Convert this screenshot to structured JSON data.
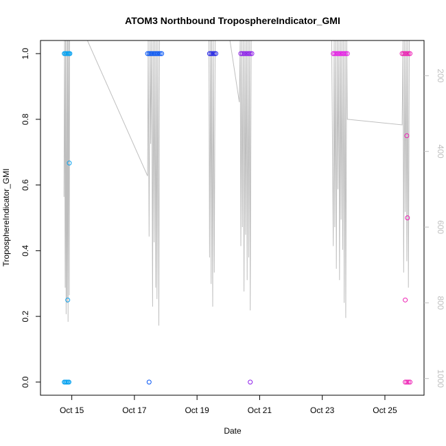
{
  "chart_data": {
    "type": "scatter",
    "title": "ATOM3 Northbound TroposphereIndicator_GMI",
    "xlabel": "Date",
    "ylabel": "TroposphereIndicator_GMI",
    "x_unit": "day of October",
    "xlim": [
      14.0,
      26.25
    ],
    "ylim": [
      -0.04,
      1.04
    ],
    "x_ticks": [
      15,
      17,
      19,
      21,
      23,
      25
    ],
    "x_tick_labels": [
      "Oct 15",
      "Oct 17",
      "Oct 19",
      "Oct 21",
      "Oct 23",
      "Oct 25"
    ],
    "y_ticks": [
      0.0,
      0.2,
      0.4,
      0.6,
      0.8,
      1.0
    ],
    "y_tick_labels": [
      "0.0",
      "0.2",
      "0.4",
      "0.6",
      "0.8",
      "1.0"
    ],
    "y2_ticks": [
      200,
      400,
      600,
      800,
      1000
    ],
    "y2_tick_labels": [
      "200",
      "400",
      "600",
      "800",
      "1000"
    ],
    "y2_lim": [
      1044,
      107
    ],
    "grid": false,
    "colors": {
      "series_1": "#0aa3f0",
      "series_2": "#0052f5",
      "series_3": "#1f1fe6",
      "series_4": "#8c1aeb",
      "series_5": "#e61ae6",
      "series_6": "#ed1ab2",
      "profile_line": "#bebebe",
      "right_axis": "#bfbfbf"
    },
    "series": [
      {
        "color": "#0aa3f0",
        "x": [
          14.76,
          14.79,
          14.82,
          14.85,
          14.88,
          14.91,
          14.94,
          14.76,
          14.79,
          14.82,
          14.85,
          14.88,
          14.91,
          14.87,
          14.92
        ],
        "y": [
          1,
          1,
          1,
          1,
          1,
          1,
          1,
          0,
          0,
          0,
          0,
          0,
          0,
          0.25,
          0.667
        ]
      },
      {
        "color": "#0052f5",
        "x": [
          17.42,
          17.47,
          17.52,
          17.57,
          17.62,
          17.67,
          17.72,
          17.77,
          17.82,
          17.87,
          17.47
        ],
        "y": [
          1,
          1,
          1,
          1,
          1,
          1,
          1,
          1,
          1,
          1,
          0
        ]
      },
      {
        "color": "#1f1fe6",
        "x": [
          19.4,
          19.45,
          19.5,
          19.55,
          19.6
        ],
        "y": [
          1,
          1,
          1,
          1,
          1
        ]
      },
      {
        "color": "#8c1aeb",
        "x": [
          20.4,
          20.45,
          20.5,
          20.55,
          20.6,
          20.65,
          20.7,
          20.75,
          20.7
        ],
        "y": [
          1,
          1,
          1,
          1,
          1,
          1,
          1,
          1,
          0
        ]
      },
      {
        "color": "#e61ae6",
        "x": [
          23.35,
          23.4,
          23.45,
          23.5,
          23.55,
          23.6,
          23.65,
          23.7,
          23.75,
          23.8
        ],
        "y": [
          1,
          1,
          1,
          1,
          1,
          1,
          1,
          1,
          1,
          1
        ]
      },
      {
        "color": "#ed1ab2",
        "x": [
          25.55,
          25.6,
          25.65,
          25.7,
          25.75,
          25.8,
          25.65,
          25.7,
          25.75,
          25.8,
          25.65,
          25.7,
          25.72
        ],
        "y": [
          1,
          1,
          1,
          1,
          1,
          1,
          0,
          0,
          0,
          0,
          0.25,
          0.75,
          0.5
        ]
      }
    ],
    "profile": {
      "y2_label": "",
      "x": [
        14.75,
        14.77,
        14.79,
        14.8,
        14.82,
        14.84,
        14.85,
        14.87,
        14.88,
        14.9,
        14.92,
        14.93,
        15.5,
        17.42,
        17.44,
        17.47,
        17.5,
        17.52,
        17.55,
        17.58,
        17.6,
        17.63,
        17.65,
        17.68,
        17.7,
        17.72,
        17.75,
        17.78,
        17.8,
        17.82,
        19.1,
        19.38,
        19.4,
        19.43,
        19.45,
        19.47,
        19.5,
        19.52,
        19.55,
        19.58,
        19.6,
        20.05,
        20.35,
        20.38,
        20.4,
        20.43,
        20.45,
        20.48,
        20.5,
        20.53,
        20.55,
        20.58,
        20.6,
        20.63,
        20.65,
        20.68,
        20.7,
        20.73,
        20.75,
        23.3,
        23.35,
        23.38,
        23.4,
        23.43,
        23.45,
        23.48,
        23.5,
        23.53,
        23.55,
        23.58,
        23.6,
        23.63,
        23.65,
        23.68,
        23.7,
        23.73,
        23.75,
        23.78,
        23.8,
        25.55,
        25.58,
        25.6,
        25.63,
        25.65,
        25.68,
        25.7,
        25.73,
        25.75,
        25.78,
        25.8
      ],
      "y2": [
        520,
        107,
        760,
        107,
        830,
        107,
        800,
        107,
        850,
        107,
        780,
        107,
        107,
        465,
        107,
        625,
        107,
        380,
        107,
        810,
        107,
        640,
        107,
        760,
        107,
        790,
        107,
        860,
        107,
        107,
        107,
        107,
        680,
        107,
        750,
        107,
        810,
        107,
        720,
        107,
        107,
        107,
        270,
        107,
        650,
        107,
        600,
        107,
        770,
        107,
        620,
        107,
        740,
        107,
        680,
        107,
        820,
        107,
        107,
        107,
        650,
        107,
        600,
        107,
        710,
        107,
        500,
        107,
        740,
        107,
        580,
        107,
        660,
        107,
        800,
        107,
        840,
        107,
        315,
        330,
        107,
        720,
        107,
        560,
        107,
        690,
        107,
        760,
        107,
        107
      ]
    }
  }
}
